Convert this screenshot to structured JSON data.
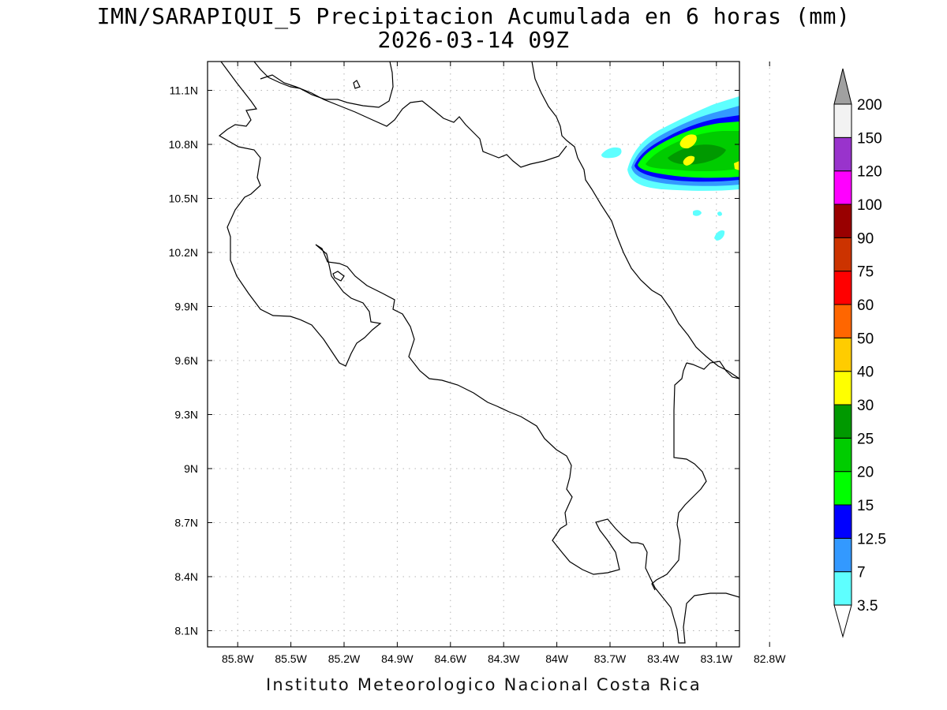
{
  "title": {
    "line1": "IMN/SARAPIQUI_5 Precipitacion Acumulada en 6 horas (mm)",
    "line2": "2026-03-14 09Z"
  },
  "footer": "Instituto Meteorologico Nacional Costa Rica",
  "map": {
    "lon_labels": [
      "85.8W",
      "85.5W",
      "85.2W",
      "84.9W",
      "84.6W",
      "84.3W",
      "84W",
      "83.7W",
      "83.4W",
      "83.1W",
      "82.8W"
    ],
    "lat_labels": [
      "11.1N",
      "10.8N",
      "10.5N",
      "10.2N",
      "9.9N",
      "9.6N",
      "9.3N",
      "9N",
      "8.7N",
      "8.4N",
      "8.1N"
    ],
    "lon_range": [
      -85.97,
      -82.97
    ],
    "lat_range": [
      8.01,
      11.26
    ],
    "gridlines": "dotted"
  },
  "colorbar": {
    "levels": [
      "3.5",
      "7",
      "12.5",
      "15",
      "20",
      "25",
      "30",
      "40",
      "50",
      "60",
      "75",
      "90",
      "100",
      "120",
      "150",
      "200"
    ],
    "colors": [
      "#ffffff",
      "#5effff",
      "#3399ff",
      "#0000ff",
      "#00ff00",
      "#00cc00",
      "#009900",
      "#ffff00",
      "#ffcc00",
      "#ff6600",
      "#ff0000",
      "#cc3300",
      "#990000",
      "#ff00ff",
      "#9933cc",
      "#f2f2f2",
      "#a0a0a0"
    ],
    "units": "mm"
  }
}
